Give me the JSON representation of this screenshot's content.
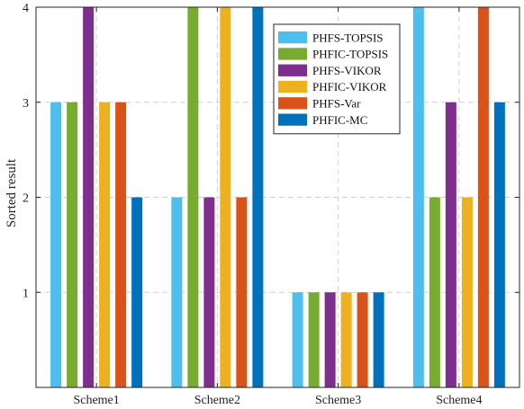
{
  "chart_data": {
    "type": "bar",
    "title": "",
    "xlabel": "",
    "ylabel": "Sorted result",
    "ylim": [
      0,
      4
    ],
    "yticks": [
      1,
      2,
      3,
      4
    ],
    "grid": true,
    "legend_position": "top-right",
    "categories": [
      "Scheme1",
      "Scheme2",
      "Scheme3",
      "Scheme4"
    ],
    "series": [
      {
        "name": "PHFS-TOPSIS",
        "color": "#4DBEEE",
        "values": [
          3,
          2,
          1,
          4
        ]
      },
      {
        "name": "PHFIC-TOPSIS",
        "color": "#77AC30",
        "values": [
          3,
          4,
          1,
          2
        ]
      },
      {
        "name": "PHFS-VIKOR",
        "color": "#7E2F8E",
        "values": [
          4,
          2,
          1,
          3
        ]
      },
      {
        "name": "PHFIC-VIKOR",
        "color": "#EDB120",
        "values": [
          3,
          4,
          1,
          2
        ]
      },
      {
        "name": "PHFS-Var",
        "color": "#D95319",
        "values": [
          3,
          2,
          1,
          4
        ]
      },
      {
        "name": "PHFIC-MC",
        "color": "#0072BD",
        "values": [
          2,
          4,
          1,
          3
        ]
      }
    ]
  }
}
